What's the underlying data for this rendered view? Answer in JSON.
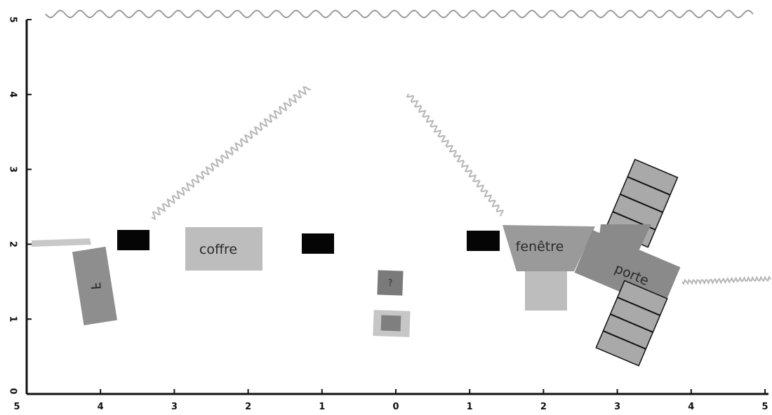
{
  "x_axis": {
    "tick_labels": [
      "5",
      "4",
      "3",
      "2",
      "1",
      "0",
      "1",
      "2",
      "3",
      "4",
      "5"
    ]
  },
  "y_axis": {
    "tick_labels": [
      "0",
      "1",
      "2",
      "3",
      "4",
      "5"
    ]
  },
  "labels": {
    "coffre": "coffre",
    "fenetre": "fenêtre",
    "porte": "porte",
    "small_box": "?",
    "left_rotated": "ꟻ"
  },
  "colors": {
    "axis": "#111111",
    "black_block": "#050505",
    "light_gray": "#bdbdbd",
    "mid_gray": "#8e8e8e",
    "dark_gray": "#7a7a7a",
    "wave": "#9a9a9a"
  }
}
